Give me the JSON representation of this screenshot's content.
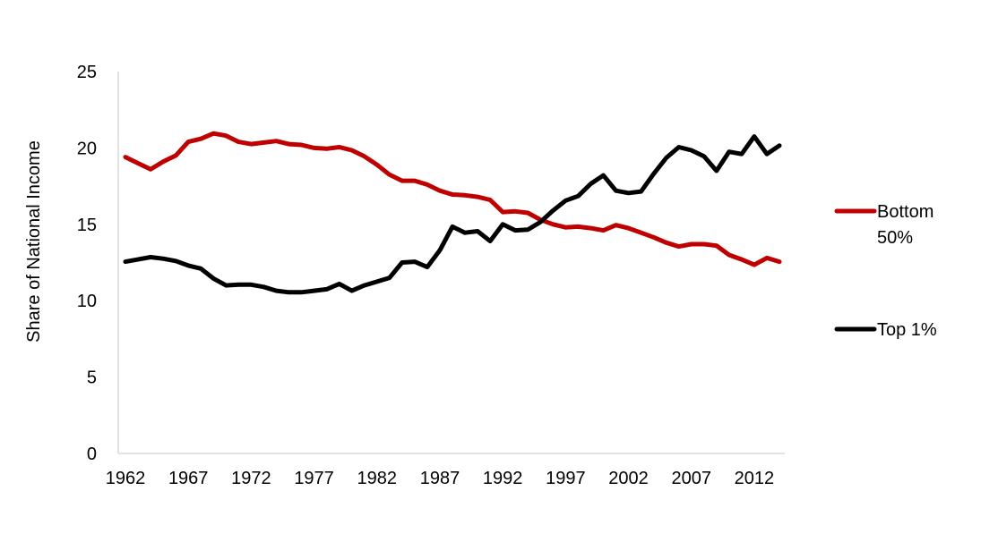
{
  "chart_data": {
    "type": "line",
    "title": "",
    "xlabel": "",
    "ylabel": "Share of National Income",
    "ylim": [
      0,
      25
    ],
    "yticks": [
      "0",
      "5",
      "10",
      "15",
      "20",
      "25"
    ],
    "xlim": [
      1962,
      2014
    ],
    "xticks": [
      "1962",
      "1967",
      "1972",
      "1977",
      "1982",
      "1987",
      "1992",
      "1997",
      "2002",
      "2007",
      "2012"
    ],
    "grid": false,
    "legend": {
      "placement": "right",
      "entries": [
        {
          "label_line1": "Bottom",
          "label_line2": "50%"
        },
        {
          "label_line1": "Top 1%",
          "label_line2": ""
        }
      ]
    },
    "x": [
      1962,
      1963,
      1964,
      1965,
      1966,
      1967,
      1968,
      1969,
      1970,
      1971,
      1972,
      1973,
      1974,
      1975,
      1976,
      1977,
      1978,
      1979,
      1980,
      1981,
      1982,
      1983,
      1984,
      1985,
      1986,
      1987,
      1988,
      1989,
      1990,
      1991,
      1992,
      1993,
      1994,
      1995,
      1996,
      1997,
      1998,
      1999,
      2000,
      2001,
      2002,
      2003,
      2004,
      2005,
      2006,
      2007,
      2008,
      2009,
      2010,
      2011,
      2012,
      2013,
      2014
    ],
    "series": [
      {
        "name": "Bottom 50%",
        "color": "#c00000",
        "values": [
          19.4,
          19.0,
          18.6,
          19.1,
          19.5,
          20.4,
          20.6,
          20.95,
          20.8,
          20.4,
          20.25,
          20.35,
          20.45,
          20.25,
          20.2,
          20.0,
          19.95,
          20.05,
          19.85,
          19.45,
          18.9,
          18.25,
          17.85,
          17.85,
          17.6,
          17.2,
          16.95,
          16.9,
          16.8,
          16.6,
          15.8,
          15.85,
          15.75,
          15.3,
          15.0,
          14.8,
          14.85,
          14.75,
          14.6,
          14.95,
          14.75,
          14.45,
          14.15,
          13.8,
          13.55,
          13.7,
          13.7,
          13.6,
          13.0,
          12.7,
          12.35,
          12.8,
          12.55
        ]
      },
      {
        "name": "Top 1%",
        "color": "#000000",
        "values": [
          12.55,
          12.7,
          12.85,
          12.75,
          12.6,
          12.3,
          12.1,
          11.45,
          11.0,
          11.05,
          11.05,
          10.9,
          10.65,
          10.55,
          10.55,
          10.65,
          10.75,
          11.1,
          10.65,
          11.0,
          11.25,
          11.5,
          12.5,
          12.55,
          12.2,
          13.3,
          14.85,
          14.45,
          14.55,
          13.9,
          15.0,
          14.6,
          14.65,
          15.15,
          15.9,
          16.55,
          16.85,
          17.65,
          18.2,
          17.2,
          17.05,
          17.15,
          18.3,
          19.35,
          20.05,
          19.85,
          19.45,
          18.5,
          19.75,
          19.6,
          20.75,
          19.6,
          20.15
        ]
      }
    ]
  }
}
